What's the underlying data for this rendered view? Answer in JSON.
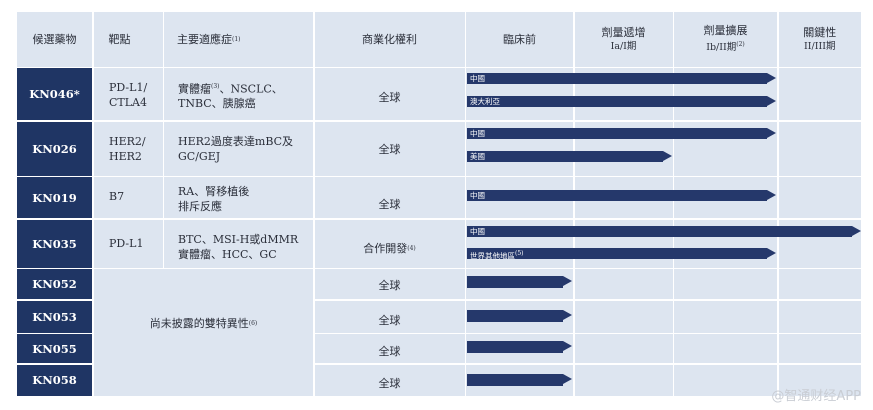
{
  "headers": {
    "drug": "候選藥物",
    "target": "靶點",
    "indication": "主要適應症",
    "indication_note": "(1)",
    "rights": "商業化權利",
    "preclinical": "臨床前",
    "phase1_line1": "劑量遞增",
    "phase1_line2": "Ia/I期",
    "phase2_line1": "劑量擴展",
    "phase2_line2": "Ib/II期",
    "phase2_note": "(2)",
    "phase3_line1": "關鍵性",
    "phase3_line2": "II/III期"
  },
  "rows": [
    {
      "drug": "KN046*",
      "target_line1": "PD-L1/",
      "target_line2": "CTLA4",
      "indication_line1": "實體瘤",
      "indication_note": "(3)",
      "indication_line1_rest": "、NSCLC、",
      "indication_line2": "TNBC、胰腺癌",
      "rights": "全球",
      "bars": [
        {
          "label": "中國",
          "stage": "phase2"
        },
        {
          "label": "澳大利亞",
          "stage": "phase2"
        }
      ]
    },
    {
      "drug": "KN026",
      "target_line1": "HER2/",
      "target_line2": "HER2",
      "indication_line1": "HER2過度表達mBC及",
      "indication_line2": "GC/GEJ",
      "rights": "全球",
      "bars": [
        {
          "label": "中國",
          "stage": "phase2"
        },
        {
          "label": "美國",
          "stage": "phase1"
        }
      ]
    },
    {
      "drug": "KN019",
      "target_line1": "B7",
      "indication_line1": "RA、腎移植後",
      "indication_line2": "排斥反應",
      "rights": "全球",
      "bars": [
        {
          "label": "中國",
          "stage": "phase2"
        }
      ]
    },
    {
      "drug": "KN035",
      "target_line1": "PD-L1",
      "indication_line1": "BTC、MSI-H或dMMR",
      "indication_line2": "實體瘤、HCC、GC",
      "rights": "合作開發",
      "rights_note": "(4)",
      "bars": [
        {
          "label": "中國",
          "stage": "phase3"
        },
        {
          "label": "世界其他地區",
          "label_note": "(5)",
          "stage": "phase2"
        }
      ]
    }
  ],
  "undisclosed": {
    "text": "尚未披露的雙特異性",
    "note": "(6)",
    "drugs": [
      {
        "drug": "KN052",
        "rights": "全球",
        "stage": "preclinical"
      },
      {
        "drug": "KN053",
        "rights": "全球",
        "stage": "preclinical"
      },
      {
        "drug": "KN055",
        "rights": "全球",
        "stage": "preclinical"
      },
      {
        "drug": "KN058",
        "rights": "全球",
        "stage": "preclinical"
      }
    ]
  },
  "watermark": "@智通财经APP",
  "colors": {
    "drug_column": "#1f3564",
    "cell_bg": "#dde5f0",
    "bar": "#25386b"
  }
}
